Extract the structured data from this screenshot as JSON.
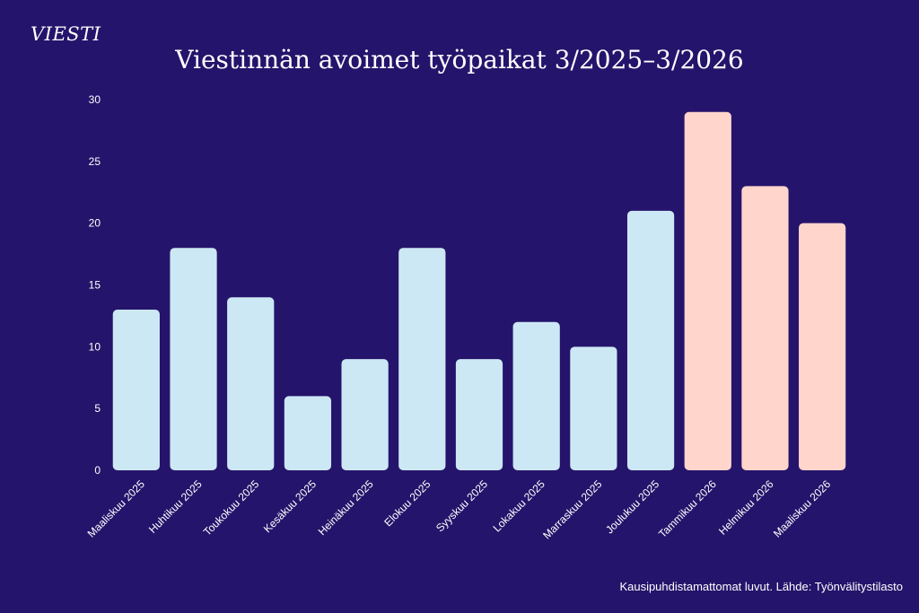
{
  "brand": "VIESTI",
  "title": "Viestinnän avoimet työpaikat 3/2025–3/2026",
  "note": "Kausipuhdistamattomat luvut. Lähde: Työnvälitystilasto",
  "colors": {
    "background": "#25146b",
    "bar_2025": "#cde8f5",
    "bar_2026": "#ffd5cc",
    "text": "#ffffff"
  },
  "chart_data": {
    "type": "bar",
    "categories": [
      "Maaliskuu 2025",
      "Huhtikuu 2025",
      "Toukokuu 2025",
      "Kesäkuu 2025",
      "Heinäkuu 2025",
      "Elokuu 2025",
      "Syyskuu 2025",
      "Lokakuu 2025",
      "Marraskuu 2025",
      "Joulukuu 2025",
      "Tammikuu 2026",
      "Helmikuu 2026",
      "Maaliskuu 2026"
    ],
    "values": [
      13,
      18,
      14,
      6,
      9,
      18,
      9,
      12,
      10,
      21,
      29,
      23,
      20
    ],
    "year_groups": [
      "2025",
      "2025",
      "2025",
      "2025",
      "2025",
      "2025",
      "2025",
      "2025",
      "2025",
      "2025",
      "2026",
      "2026",
      "2026"
    ],
    "ylim": [
      0,
      30
    ],
    "yticks": [
      0,
      5,
      10,
      15,
      20,
      25,
      30
    ],
    "grid": false,
    "legend": "none"
  }
}
